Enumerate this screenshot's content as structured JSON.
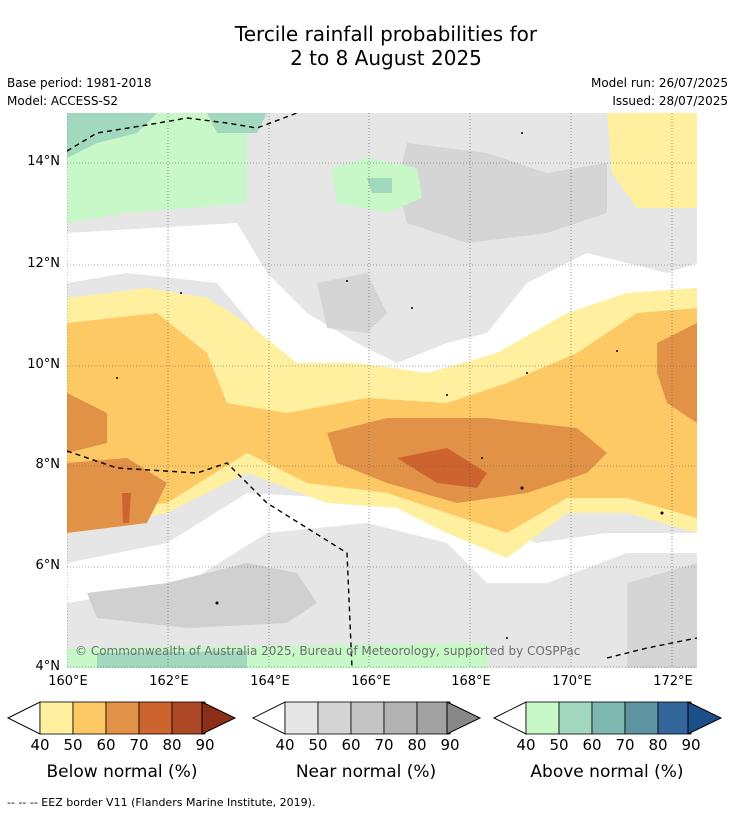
{
  "title_line1": "Tercile rainfall probabilities for",
  "title_line2": "2 to 8 August 2025",
  "meta_left": {
    "base_period": "Base period: 1981-2018",
    "model": "Model: ACCESS-S2"
  },
  "meta_right": {
    "model_run": "Model run: 26/07/2025",
    "issued": "Issued: 28/07/2025"
  },
  "map": {
    "lat_labels": [
      "14°N",
      "12°N",
      "10°N",
      "8°N",
      "6°N",
      "4°N"
    ],
    "lon_labels": [
      "160°E",
      "162°E",
      "164°E",
      "166°E",
      "168°E",
      "170°E",
      "172°E"
    ],
    "copyright": "© Commonwealth of Australia 2025, Bureau of Meteorology, supported by COSPPac"
  },
  "colorbars": [
    {
      "label": "Below normal (%)",
      "ticks": [
        "40",
        "50",
        "60",
        "70",
        "80",
        "90"
      ],
      "colors": [
        "#fff0a0",
        "#fdc965",
        "#e29246",
        "#cd632f",
        "#ad4826",
        "#8c2e17"
      ]
    },
    {
      "label": "Near normal (%)",
      "ticks": [
        "40",
        "50",
        "60",
        "70",
        "80",
        "90"
      ],
      "colors": [
        "#e6e6e6",
        "#d5d5d5",
        "#c4c4c4",
        "#b3b3b3",
        "#a2a2a2",
        "#888888"
      ]
    },
    {
      "label": "Above normal (%)",
      "ticks": [
        "40",
        "50",
        "60",
        "70",
        "80",
        "90"
      ],
      "colors": [
        "#c8f8c8",
        "#a2d8be",
        "#7cb8b0",
        "#5c94a2",
        "#33669a",
        "#1a4f8a"
      ]
    }
  ],
  "footnote": "--  --  -- EEZ border V11 (Flanders Marine Institute, 2019)."
}
